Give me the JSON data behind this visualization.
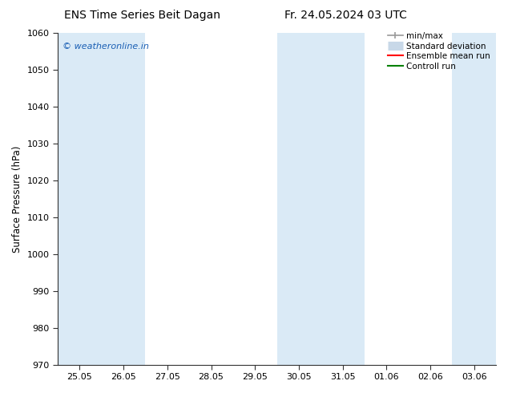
{
  "title_left": "ENS Time Series Beit Dagan",
  "title_right": "Fr. 24.05.2024 03 UTC",
  "ylabel": "Surface Pressure (hPa)",
  "ylim": [
    970,
    1060
  ],
  "yticks": [
    970,
    980,
    990,
    1000,
    1010,
    1020,
    1030,
    1040,
    1050,
    1060
  ],
  "xlabels": [
    "25.05",
    "26.05",
    "27.05",
    "28.05",
    "29.05",
    "30.05",
    "31.05",
    "01.06",
    "02.06",
    "03.06"
  ],
  "watermark": "© weatheronline.in",
  "watermark_color": "#1a5fb4",
  "legend_entries": [
    "min/max",
    "Standard deviation",
    "Ensemble mean run",
    "Controll run"
  ],
  "legend_colors": [
    "#999999",
    "#c8d8e8",
    "#ff0000",
    "#008000"
  ],
  "bg_color": "#ffffff",
  "shaded_band_color": "#daeaf6",
  "shaded_bands_x": [
    0,
    1,
    5,
    6,
    9
  ],
  "title_fontsize": 10,
  "axis_fontsize": 8.5,
  "tick_fontsize": 8
}
